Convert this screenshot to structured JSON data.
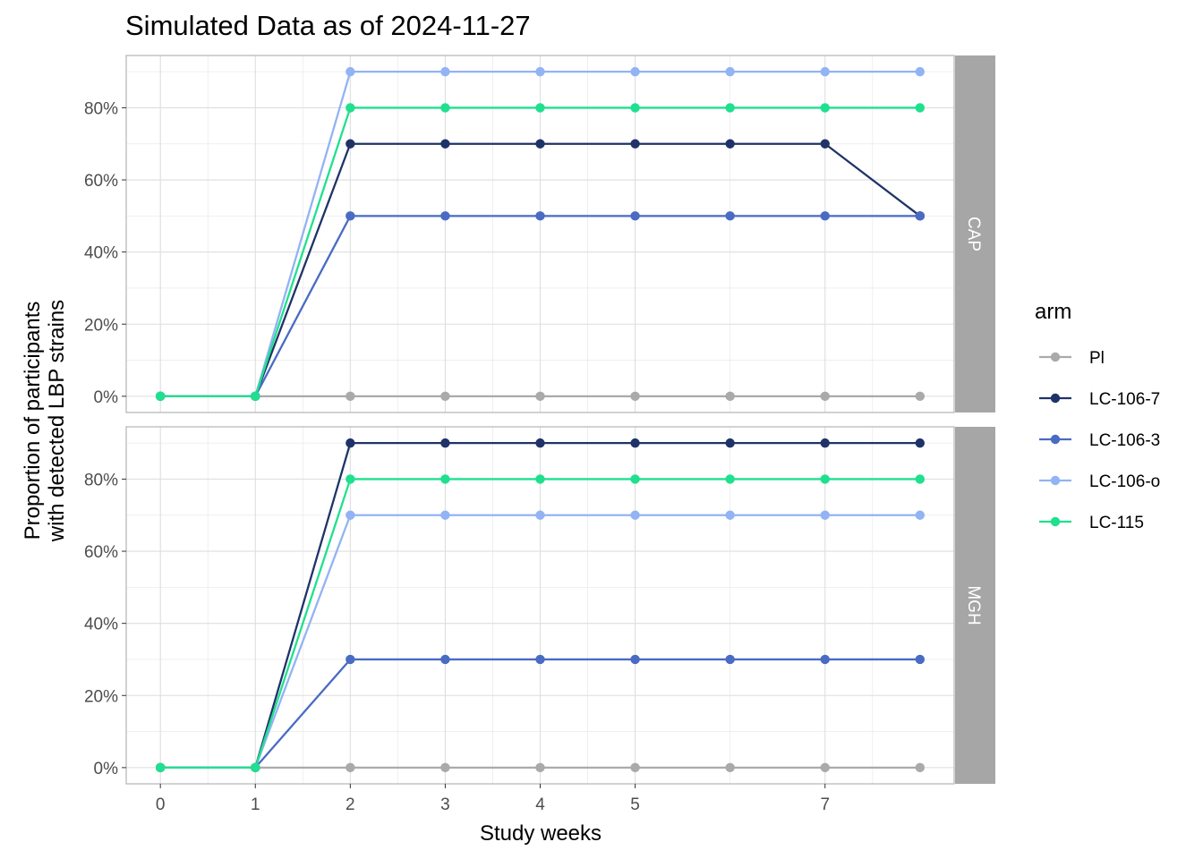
{
  "chart_data": {
    "type": "line",
    "title": "Simulated Data as of 2024-11-27",
    "xlabel": "Study weeks",
    "ylabel_lines": [
      "Proportion of participants",
      "with detected LBP strains"
    ],
    "x_ticks": [
      0,
      1,
      2,
      3,
      4,
      5,
      7
    ],
    "y_ticks": [
      "0%",
      "20%",
      "40%",
      "60%",
      "80%"
    ],
    "x_range": [
      -0.36,
      8.36
    ],
    "y_range": [
      -0.045,
      0.945
    ],
    "x": [
      0,
      1,
      2,
      3,
      4,
      5,
      6,
      7,
      8
    ],
    "grid": true,
    "legend": {
      "title": "arm",
      "placement": "right",
      "entries": [
        {
          "name": "Pl",
          "color": "#AAAAAA"
        },
        {
          "name": "LC-106-7",
          "color": "#1F3368"
        },
        {
          "name": "LC-106-3",
          "color": "#4A6BC4"
        },
        {
          "name": "LC-106-o",
          "color": "#92B3F4"
        },
        {
          "name": "LC-115",
          "color": "#1FE08E"
        }
      ]
    },
    "panels": [
      {
        "label": "CAP",
        "series": [
          {
            "name": "Pl",
            "values": [
              0,
              0,
              0,
              0,
              0,
              0,
              0,
              0,
              0
            ]
          },
          {
            "name": "LC-106-3",
            "values": [
              0,
              0,
              0.5,
              0.5,
              0.5,
              0.5,
              0.5,
              0.5,
              0.5
            ]
          },
          {
            "name": "LC-106-7",
            "values": [
              0,
              0,
              0.7,
              0.7,
              0.7,
              0.7,
              0.7,
              0.7,
              0.5
            ]
          },
          {
            "name": "LC-106-o",
            "values": [
              0,
              0,
              0.9,
              0.9,
              0.9,
              0.9,
              0.9,
              0.9,
              0.9
            ]
          },
          {
            "name": "LC-115",
            "values": [
              0,
              0,
              0.8,
              0.8,
              0.8,
              0.8,
              0.8,
              0.8,
              0.8
            ]
          }
        ]
      },
      {
        "label": "MGH",
        "series": [
          {
            "name": "Pl",
            "values": [
              0,
              0,
              0,
              0,
              0,
              0,
              0,
              0,
              0
            ]
          },
          {
            "name": "LC-106-3",
            "values": [
              0,
              0,
              0.3,
              0.3,
              0.3,
              0.3,
              0.3,
              0.3,
              0.3
            ]
          },
          {
            "name": "LC-106-o",
            "values": [
              0,
              0,
              0.7,
              0.7,
              0.7,
              0.7,
              0.7,
              0.7,
              0.7
            ]
          },
          {
            "name": "LC-115",
            "values": [
              0,
              0,
              0.8,
              0.8,
              0.8,
              0.8,
              0.8,
              0.8,
              0.8
            ]
          },
          {
            "name": "LC-106-7",
            "values": [
              0,
              0,
              0.9,
              0.9,
              0.9,
              0.9,
              0.9,
              0.9,
              0.9
            ]
          }
        ]
      }
    ]
  }
}
